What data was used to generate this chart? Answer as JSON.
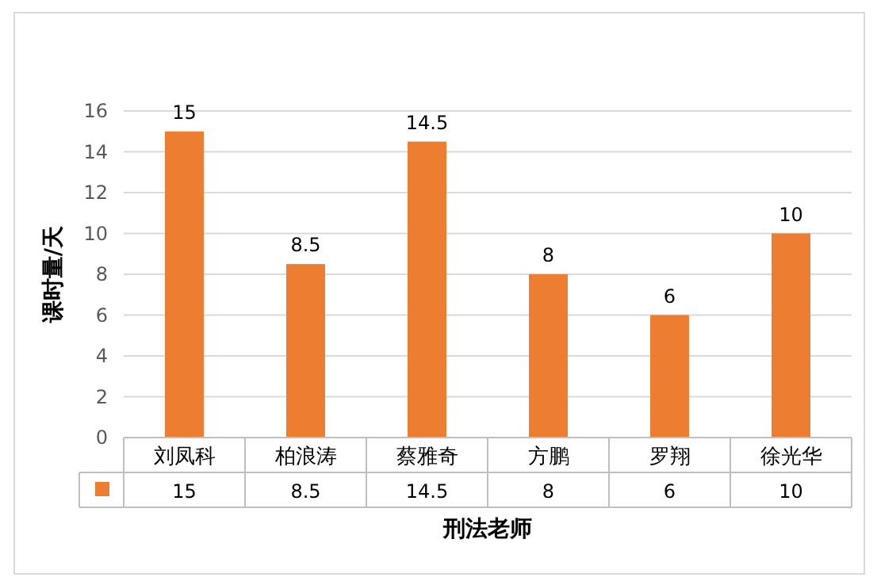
{
  "chart_data": {
    "type": "bar",
    "xlabel": "刑法老师",
    "ylabel": "课时量/天",
    "categories": [
      "刘凤科",
      "柏浪涛",
      "蔡雅奇",
      "方鹏",
      "罗翔",
      "徐光华"
    ],
    "values": [
      15,
      8.5,
      14.5,
      8,
      6,
      10
    ],
    "value_labels": [
      "15",
      "8.5",
      "14.5",
      "8",
      "6",
      "10"
    ],
    "color": "#ed7d31",
    "ylim": [
      0,
      16
    ],
    "yticks": [
      0,
      2,
      4,
      6,
      8,
      10,
      12,
      14,
      16
    ],
    "grid": "y",
    "annotations": [
      "15",
      "8.5",
      "14.5",
      "8",
      "6",
      "10"
    ]
  }
}
